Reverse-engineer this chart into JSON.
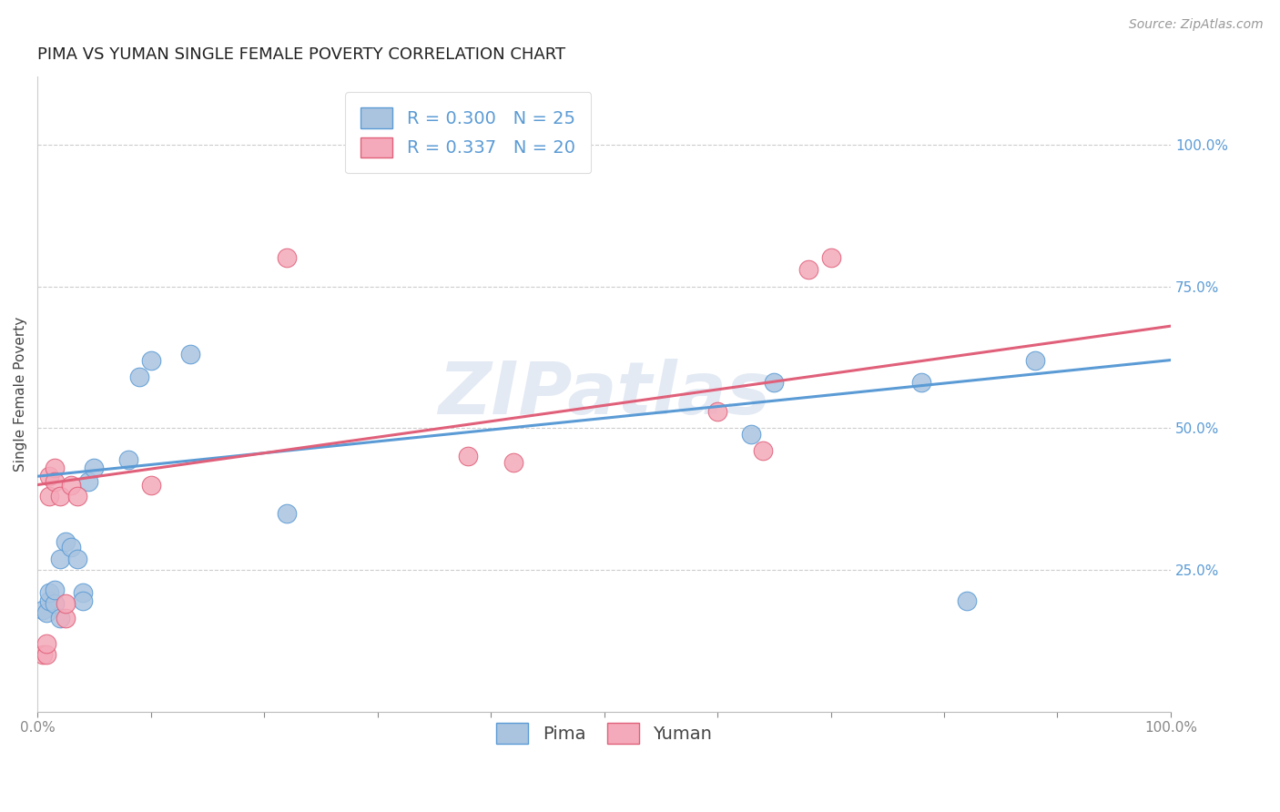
{
  "title": "PIMA VS YUMAN SINGLE FEMALE POVERTY CORRELATION CHART",
  "source": "Source: ZipAtlas.com",
  "ylabel": "Single Female Poverty",
  "xlim": [
    0,
    1
  ],
  "ylim": [
    0,
    1.12
  ],
  "pima_x": [
    0.005,
    0.008,
    0.01,
    0.01,
    0.015,
    0.015,
    0.02,
    0.02,
    0.025,
    0.03,
    0.035,
    0.04,
    0.04,
    0.045,
    0.05,
    0.08,
    0.09,
    0.1,
    0.135,
    0.22,
    0.63,
    0.65,
    0.78,
    0.82,
    0.88
  ],
  "pima_y": [
    0.18,
    0.175,
    0.195,
    0.21,
    0.19,
    0.215,
    0.165,
    0.27,
    0.3,
    0.29,
    0.27,
    0.21,
    0.195,
    0.405,
    0.43,
    0.445,
    0.59,
    0.62,
    0.63,
    0.35,
    0.49,
    0.58,
    0.58,
    0.195,
    0.62
  ],
  "yuman_x": [
    0.005,
    0.008,
    0.008,
    0.01,
    0.01,
    0.015,
    0.015,
    0.02,
    0.025,
    0.025,
    0.03,
    0.035,
    0.1,
    0.22,
    0.38,
    0.42,
    0.6,
    0.64,
    0.68,
    0.7
  ],
  "yuman_y": [
    0.1,
    0.1,
    0.12,
    0.38,
    0.415,
    0.43,
    0.405,
    0.38,
    0.165,
    0.19,
    0.4,
    0.38,
    0.4,
    0.8,
    0.45,
    0.44,
    0.53,
    0.46,
    0.78,
    0.8
  ],
  "pima_color": "#aac4e0",
  "yuman_color": "#f4aaba",
  "pima_line_color": "#5b9bd5",
  "yuman_line_color": "#e0607a",
  "pima_R": 0.3,
  "pima_N": 25,
  "yuman_R": 0.337,
  "yuman_N": 20,
  "trendline_pima": [
    0.0,
    1.0,
    0.415,
    0.62
  ],
  "trendline_yuman": [
    0.0,
    1.0,
    0.4,
    0.68
  ],
  "grid_color": "#cccccc",
  "bg_color": "#ffffff",
  "watermark": "ZIPatlas",
  "title_fontsize": 13,
  "axis_label_fontsize": 11,
  "tick_fontsize": 11,
  "legend_fontsize": 14,
  "source_fontsize": 10,
  "right_tick_color": "#5b9bd5",
  "bottom_tick_label_color": "#888888"
}
